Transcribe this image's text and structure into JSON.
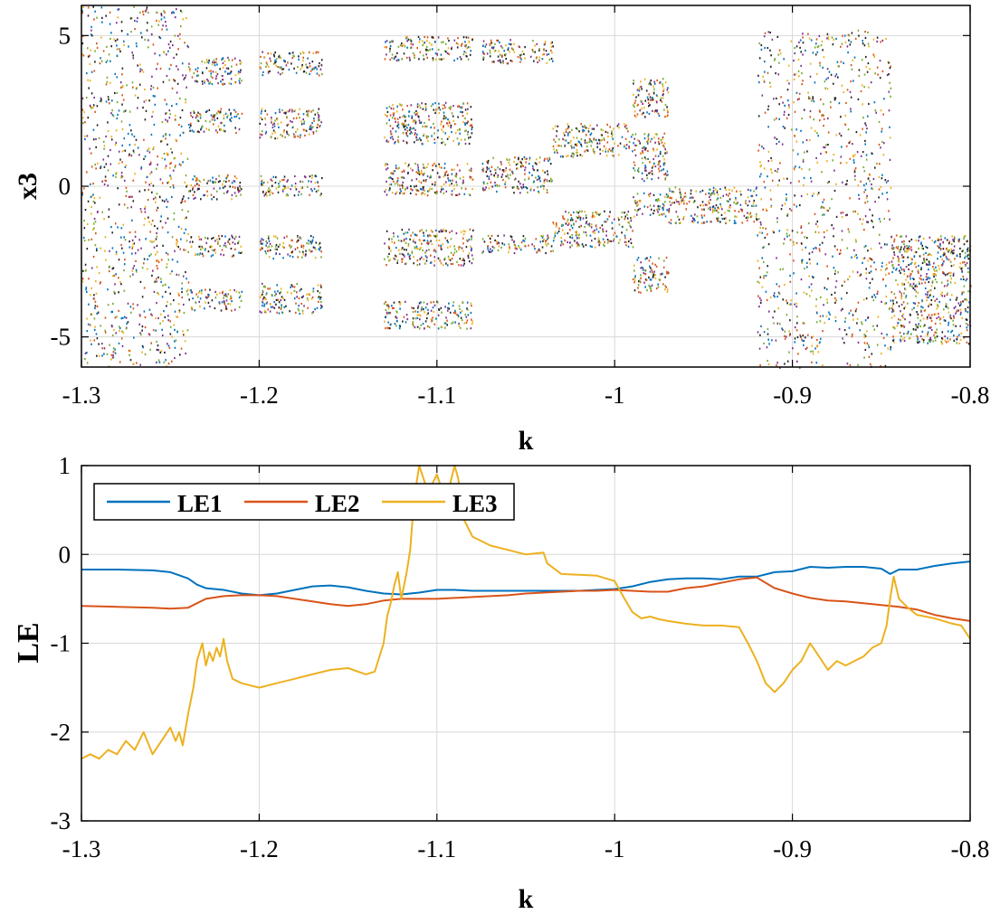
{
  "chart_data": [
    {
      "type": "scatter",
      "panel": "bifurcation",
      "xlabel": "k",
      "ylabel": "x3",
      "xlim": [
        -1.3,
        -0.8
      ],
      "ylim": [
        -6,
        6
      ],
      "xticks": [
        -1.3,
        -1.2,
        -1.1,
        -1,
        -0.9,
        -0.8
      ],
      "xtick_labels": [
        "-1.3",
        "-1.2",
        "-1.1",
        "-1",
        "-0.9",
        "-0.8"
      ],
      "yticks": [
        -5,
        0,
        5
      ],
      "ytick_labels": [
        "-5",
        "0",
        "5"
      ],
      "grid": true,
      "point_colors": [
        "#0072BD",
        "#D95319",
        "#EDB120",
        "#7E2F8E",
        "#77AC30",
        "#222222"
      ],
      "bands": [
        {
          "k": [
            -1.3,
            -1.24
          ],
          "ranges": [
            [
              -6,
              6
            ]
          ]
        },
        {
          "k": [
            -1.24,
            -1.21
          ],
          "ranges": [
            [
              3.4,
              4.3
            ],
            [
              1.8,
              2.6
            ],
            [
              -0.4,
              0.4
            ],
            [
              -2.3,
              -1.6
            ],
            [
              -4.1,
              -3.4
            ]
          ]
        },
        {
          "k": [
            -1.2,
            -1.165
          ],
          "ranges": [
            [
              3.7,
              4.5
            ],
            [
              1.6,
              2.6
            ],
            [
              -0.3,
              0.4
            ],
            [
              -2.4,
              -1.6
            ],
            [
              -4.2,
              -3.2
            ]
          ]
        },
        {
          "k": [
            -1.13,
            -1.08
          ],
          "ranges": [
            [
              4.2,
              5.0
            ],
            [
              1.4,
              2.8
            ],
            [
              -0.3,
              0.8
            ],
            [
              -2.6,
              -1.4
            ],
            [
              -4.7,
              -3.8
            ]
          ]
        },
        {
          "k": [
            -1.075,
            -1.035
          ],
          "ranges": [
            [
              4.1,
              4.9
            ],
            [
              -0.2,
              1.0
            ],
            [
              -2.2,
              -1.6
            ]
          ]
        },
        {
          "k": [
            -1.035,
            -0.99
          ],
          "ranges": [
            [
              1.0,
              2.1
            ],
            [
              -2.0,
              -0.8
            ]
          ]
        },
        {
          "k": [
            -0.99,
            -0.97
          ],
          "ranges": [
            [
              2.3,
              3.6
            ],
            [
              0.2,
              1.8
            ],
            [
              -1.0,
              -0.2
            ],
            [
              -3.5,
              -2.3
            ]
          ]
        },
        {
          "k": [
            -0.97,
            -0.92
          ],
          "ranges": [
            [
              -1.2,
              0.0
            ]
          ]
        },
        {
          "k": [
            -0.92,
            -0.845
          ],
          "ranges": [
            [
              -6,
              5.2
            ]
          ]
        },
        {
          "k": [
            -0.845,
            -0.8
          ],
          "ranges": [
            [
              -5.2,
              -1.6
            ]
          ]
        }
      ]
    },
    {
      "type": "line",
      "panel": "lyapunov",
      "xlabel": "k",
      "ylabel": "LE",
      "xlim": [
        -1.3,
        -0.8
      ],
      "ylim": [
        -3,
        1
      ],
      "xticks": [
        -1.3,
        -1.2,
        -1.1,
        -1,
        -0.9,
        -0.8
      ],
      "xtick_labels": [
        "-1.3",
        "-1.2",
        "-1.1",
        "-1",
        "-0.9",
        "-0.8"
      ],
      "yticks": [
        -3,
        -2,
        -1,
        0,
        1
      ],
      "ytick_labels": [
        "-3",
        "-2",
        "-1",
        "0",
        "1"
      ],
      "grid": true,
      "legend_position": "top-left",
      "series": [
        {
          "name": "LE1",
          "color": "#0072BD",
          "x": [
            -1.3,
            -1.28,
            -1.26,
            -1.25,
            -1.24,
            -1.235,
            -1.23,
            -1.22,
            -1.21,
            -1.2,
            -1.19,
            -1.18,
            -1.17,
            -1.16,
            -1.15,
            -1.14,
            -1.13,
            -1.12,
            -1.11,
            -1.1,
            -1.09,
            -1.08,
            -1.07,
            -1.06,
            -1.05,
            -1.04,
            -1.03,
            -1.02,
            -1.01,
            -1.0,
            -0.99,
            -0.98,
            -0.97,
            -0.96,
            -0.95,
            -0.94,
            -0.93,
            -0.92,
            -0.91,
            -0.9,
            -0.89,
            -0.88,
            -0.87,
            -0.86,
            -0.85,
            -0.845,
            -0.84,
            -0.83,
            -0.82,
            -0.81,
            -0.8
          ],
          "y": [
            -0.17,
            -0.17,
            -0.18,
            -0.2,
            -0.27,
            -0.34,
            -0.38,
            -0.4,
            -0.44,
            -0.46,
            -0.44,
            -0.4,
            -0.36,
            -0.35,
            -0.37,
            -0.41,
            -0.44,
            -0.45,
            -0.43,
            -0.4,
            -0.4,
            -0.41,
            -0.41,
            -0.41,
            -0.41,
            -0.41,
            -0.41,
            -0.41,
            -0.4,
            -0.39,
            -0.36,
            -0.31,
            -0.28,
            -0.27,
            -0.27,
            -0.28,
            -0.25,
            -0.25,
            -0.2,
            -0.19,
            -0.14,
            -0.15,
            -0.14,
            -0.14,
            -0.16,
            -0.22,
            -0.17,
            -0.17,
            -0.13,
            -0.1,
            -0.08
          ]
        },
        {
          "name": "LE2",
          "color": "#D95319",
          "x": [
            -1.3,
            -1.28,
            -1.26,
            -1.25,
            -1.24,
            -1.23,
            -1.22,
            -1.21,
            -1.2,
            -1.19,
            -1.18,
            -1.17,
            -1.16,
            -1.15,
            -1.14,
            -1.13,
            -1.12,
            -1.11,
            -1.1,
            -1.09,
            -1.08,
            -1.07,
            -1.06,
            -1.05,
            -1.04,
            -1.03,
            -1.02,
            -1.01,
            -1.0,
            -0.99,
            -0.98,
            -0.97,
            -0.96,
            -0.95,
            -0.94,
            -0.93,
            -0.92,
            -0.91,
            -0.9,
            -0.89,
            -0.88,
            -0.87,
            -0.86,
            -0.85,
            -0.84,
            -0.83,
            -0.82,
            -0.81,
            -0.8
          ],
          "y": [
            -0.58,
            -0.59,
            -0.6,
            -0.61,
            -0.6,
            -0.5,
            -0.47,
            -0.46,
            -0.46,
            -0.47,
            -0.5,
            -0.53,
            -0.56,
            -0.58,
            -0.56,
            -0.52,
            -0.5,
            -0.5,
            -0.5,
            -0.49,
            -0.48,
            -0.47,
            -0.46,
            -0.44,
            -0.43,
            -0.42,
            -0.41,
            -0.41,
            -0.4,
            -0.41,
            -0.42,
            -0.42,
            -0.38,
            -0.36,
            -0.32,
            -0.28,
            -0.26,
            -0.38,
            -0.44,
            -0.49,
            -0.52,
            -0.53,
            -0.55,
            -0.57,
            -0.59,
            -0.62,
            -0.68,
            -0.72,
            -0.75
          ]
        },
        {
          "name": "LE3",
          "color": "#EDB120",
          "x": [
            -1.3,
            -1.295,
            -1.29,
            -1.285,
            -1.28,
            -1.275,
            -1.27,
            -1.265,
            -1.26,
            -1.255,
            -1.25,
            -1.247,
            -1.245,
            -1.243,
            -1.24,
            -1.237,
            -1.235,
            -1.232,
            -1.23,
            -1.228,
            -1.226,
            -1.224,
            -1.222,
            -1.22,
            -1.218,
            -1.215,
            -1.21,
            -1.2,
            -1.19,
            -1.18,
            -1.17,
            -1.16,
            -1.15,
            -1.14,
            -1.135,
            -1.13,
            -1.128,
            -1.126,
            -1.124,
            -1.122,
            -1.12,
            -1.117,
            -1.115,
            -1.113,
            -1.11,
            -1.105,
            -1.1,
            -1.095,
            -1.09,
            -1.088,
            -1.085,
            -1.08,
            -1.07,
            -1.06,
            -1.05,
            -1.04,
            -1.038,
            -1.03,
            -1.02,
            -1.01,
            -1.0,
            -0.995,
            -0.99,
            -0.985,
            -0.98,
            -0.975,
            -0.97,
            -0.96,
            -0.95,
            -0.94,
            -0.93,
            -0.925,
            -0.92,
            -0.915,
            -0.91,
            -0.905,
            -0.9,
            -0.895,
            -0.89,
            -0.885,
            -0.88,
            -0.875,
            -0.87,
            -0.865,
            -0.86,
            -0.855,
            -0.85,
            -0.847,
            -0.845,
            -0.843,
            -0.84,
            -0.835,
            -0.83,
            -0.825,
            -0.82,
            -0.815,
            -0.81,
            -0.805,
            -0.8
          ],
          "y": [
            -2.3,
            -2.25,
            -2.3,
            -2.2,
            -2.25,
            -2.1,
            -2.2,
            -2.0,
            -2.25,
            -2.1,
            -1.95,
            -2.1,
            -2.0,
            -2.15,
            -1.8,
            -1.5,
            -1.2,
            -1.0,
            -1.25,
            -1.1,
            -1.2,
            -1.05,
            -1.15,
            -0.95,
            -1.2,
            -1.4,
            -1.45,
            -1.5,
            -1.45,
            -1.4,
            -1.35,
            -1.3,
            -1.28,
            -1.35,
            -1.32,
            -1.0,
            -0.7,
            -0.55,
            -0.35,
            -0.2,
            -0.5,
            -0.2,
            0.05,
            0.6,
            1.0,
            0.7,
            0.9,
            0.6,
            1.0,
            0.85,
            0.4,
            0.2,
            0.1,
            0.05,
            0.0,
            0.02,
            -0.1,
            -0.22,
            -0.23,
            -0.24,
            -0.3,
            -0.48,
            -0.65,
            -0.72,
            -0.7,
            -0.73,
            -0.75,
            -0.78,
            -0.8,
            -0.8,
            -0.82,
            -1.0,
            -1.2,
            -1.45,
            -1.55,
            -1.45,
            -1.3,
            -1.2,
            -1.0,
            -1.15,
            -1.3,
            -1.2,
            -1.25,
            -1.2,
            -1.15,
            -1.05,
            -1.0,
            -0.8,
            -0.5,
            -0.25,
            -0.5,
            -0.6,
            -0.68,
            -0.7,
            -0.72,
            -0.75,
            -0.78,
            -0.8,
            -0.95
          ]
        }
      ]
    }
  ]
}
